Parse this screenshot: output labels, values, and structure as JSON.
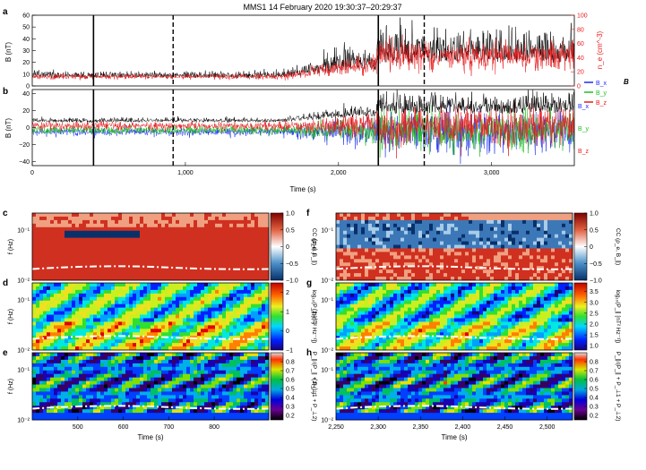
{
  "title": "MMS1 14 February 2020 19:30:37–20:29:37",
  "colors": {
    "black": "#000000",
    "red": "#e8191b",
    "blue": "#1c2ef0",
    "green": "#1fbf1f"
  },
  "chart_data": [
    {
      "id": "a",
      "type": "line",
      "panel_label": "a",
      "ylabel": "B (nT)",
      "ylabel_right": "n_e (cm^-3)",
      "ylim": [
        0,
        60
      ],
      "ylim_right": [
        0,
        100
      ],
      "yticks": [
        "0",
        "10",
        "20",
        "30",
        "40",
        "50",
        "60"
      ],
      "yticks_right": [
        "0",
        "20",
        "40",
        "60",
        "80",
        "100"
      ],
      "xlim": [
        0,
        3540
      ],
      "series": [
        {
          "name": "B",
          "color": "black"
        },
        {
          "name": "n_e",
          "color": "red"
        }
      ],
      "legend": "B",
      "vlines_solid": [
        400,
        2260
      ],
      "vlines_dashed": [
        920,
        2560
      ]
    },
    {
      "id": "b",
      "type": "line",
      "panel_label": "b",
      "ylabel": "B (nT)",
      "ylim": [
        -45,
        45
      ],
      "yticks": [
        "40",
        "20",
        "0",
        "−20",
        "−40"
      ],
      "xlim": [
        0,
        3540
      ],
      "xlabel": "Time (s)",
      "xticks": [
        "0",
        "1,000",
        "2,000",
        "3,000"
      ],
      "series": [
        {
          "name": "B_x",
          "color": "blue"
        },
        {
          "name": "B_y",
          "color": "green"
        },
        {
          "name": "B_z",
          "color": "red"
        },
        {
          "name": "|B|",
          "color": "black"
        }
      ],
      "legend": [
        "B_x",
        "B_y",
        "B_z"
      ],
      "side_labels": [
        "B_x",
        "B_y",
        "B_z"
      ],
      "vlines_solid": [
        400,
        2260
      ],
      "vlines_dashed": [
        920,
        2560
      ]
    },
    {
      "id": "c",
      "type": "heatmap",
      "panel_label": "c",
      "ylabel": "f (Hz)",
      "ylim_hz": [
        0.01,
        0.2
      ],
      "yticks": [
        "10⁻¹",
        "10⁻²"
      ],
      "colorbar": {
        "label": "CC (ρ_e, B_∥)",
        "ticks": [
          "1.0",
          "0.5",
          "0",
          "−0.5",
          "−1.0"
        ],
        "range": [
          -1,
          1
        ]
      },
      "xlim": [
        400,
        920
      ]
    },
    {
      "id": "d",
      "type": "heatmap",
      "panel_label": "d",
      "ylabel": "f (Hz)",
      "yticks": [
        "10⁻¹",
        "10⁻²"
      ],
      "colorbar": {
        "label": "log₁₀(P_∥ [nT² Hz⁻¹])",
        "ticks": [
          "2",
          "1",
          "0",
          "−1"
        ],
        "range": [
          -1,
          2.5
        ]
      },
      "xlim": [
        400,
        920
      ]
    },
    {
      "id": "e",
      "type": "heatmap",
      "panel_label": "e",
      "ylabel": "f (Hz)",
      "yticks": [
        "10⁻¹",
        "10⁻²"
      ],
      "colorbar": {
        "label": "P_∥/(P_∥ + P_⊥1 + P_⊥2)",
        "ticks": [
          "0.8",
          "0.7",
          "0.6",
          "0.5",
          "0.4",
          "0.3",
          "0.2"
        ],
        "range": [
          0.15,
          0.9
        ]
      },
      "xlim": [
        400,
        920
      ],
      "xlabel": "Time (s)",
      "xticks": [
        "500",
        "600",
        "700",
        "800"
      ]
    },
    {
      "id": "f",
      "type": "heatmap",
      "panel_label": "f",
      "ylabel": "f (Hz)",
      "yticks": [
        "10⁻¹",
        "10⁻²"
      ],
      "colorbar": {
        "label": "CC (ρ_e, B_∥)",
        "ticks": [
          "1.0",
          "0.5",
          "0",
          "−0.5",
          "−1.0"
        ],
        "range": [
          -1,
          1
        ]
      },
      "xlim": [
        2250,
        2530
      ]
    },
    {
      "id": "g",
      "type": "heatmap",
      "panel_label": "g",
      "ylabel": "f (Hz)",
      "yticks": [
        "10⁻¹",
        "10⁻²"
      ],
      "colorbar": {
        "label": "log₁₀(P_∥ [nT² Hz⁻¹])",
        "ticks": [
          "3.5",
          "3.0",
          "2.5",
          "2.0",
          "1.5",
          "1.0"
        ],
        "range": [
          0.8,
          3.9
        ]
      },
      "xlim": [
        2250,
        2530
      ]
    },
    {
      "id": "h",
      "type": "heatmap",
      "panel_label": "h",
      "ylabel": "f (Hz)",
      "yticks": [
        "10⁻¹",
        "10⁻²"
      ],
      "colorbar": {
        "label": "P_∥/(P_∥ + P_⊥1 + P_⊥2)",
        "ticks": [
          "0.8",
          "0.7",
          "0.6",
          "0.5",
          "0.4",
          "0.3",
          "0.2"
        ],
        "range": [
          0.15,
          0.9
        ]
      },
      "xlim": [
        2250,
        2530
      ],
      "xlabel": "Time (s)",
      "xticks": [
        "2,250",
        "2,300",
        "2,350",
        "2,400",
        "2,450",
        "2,500"
      ]
    }
  ]
}
